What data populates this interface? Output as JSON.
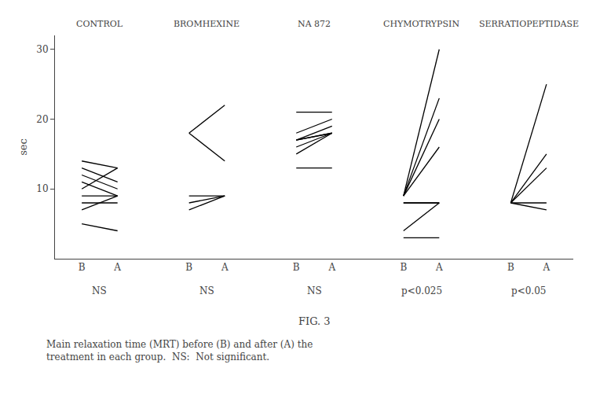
{
  "chart_data": {
    "type": "slope",
    "title": "FIG. 3",
    "subtitle": "Main relaxation time (MRT) before (B) and after (A) the\ntreatment in each group.  NS:  Not significant.",
    "ylabel": "sec",
    "categories": [
      "B",
      "A"
    ],
    "ylim": [
      0,
      32
    ],
    "yticks": [
      10,
      20,
      30
    ],
    "grid": false,
    "color": "#000000",
    "series": [
      {
        "name": "CONTROL",
        "annotations": [
          "NS"
        ],
        "values": [
          [
            14,
            13
          ],
          [
            13,
            11
          ],
          [
            12,
            10
          ],
          [
            11,
            9
          ],
          [
            10,
            13
          ],
          [
            9,
            9
          ],
          [
            8,
            8
          ],
          [
            7,
            9
          ],
          [
            5,
            4
          ]
        ]
      },
      {
        "name": "BROMHEXINE",
        "annotations": [
          "NS"
        ],
        "values": [
          [
            18,
            22
          ],
          [
            18,
            14
          ],
          [
            9,
            9
          ],
          [
            8,
            9
          ],
          [
            7,
            9
          ]
        ]
      },
      {
        "name": "NA 872",
        "annotations": [
          "NS"
        ],
        "values": [
          [
            21,
            21
          ],
          [
            18,
            20
          ],
          [
            17,
            19
          ],
          [
            17,
            18
          ],
          [
            17,
            18
          ],
          [
            16,
            18
          ],
          [
            15,
            18
          ],
          [
            13,
            13
          ]
        ]
      },
      {
        "name": "CHYMOTRYPSIN",
        "annotations": [
          "p<0.025"
        ],
        "values": [
          [
            9,
            30
          ],
          [
            9,
            23
          ],
          [
            9,
            20
          ],
          [
            9,
            16
          ],
          [
            8,
            8
          ],
          [
            8,
            8
          ],
          [
            4,
            8
          ],
          [
            3,
            3
          ]
        ]
      },
      {
        "name": "SERRATIOPEPTIDASE",
        "annotations": [
          "p<0.05"
        ],
        "values": [
          [
            8,
            25
          ],
          [
            8,
            15
          ],
          [
            8,
            13
          ],
          [
            8,
            8
          ],
          [
            8,
            7
          ]
        ]
      }
    ]
  }
}
